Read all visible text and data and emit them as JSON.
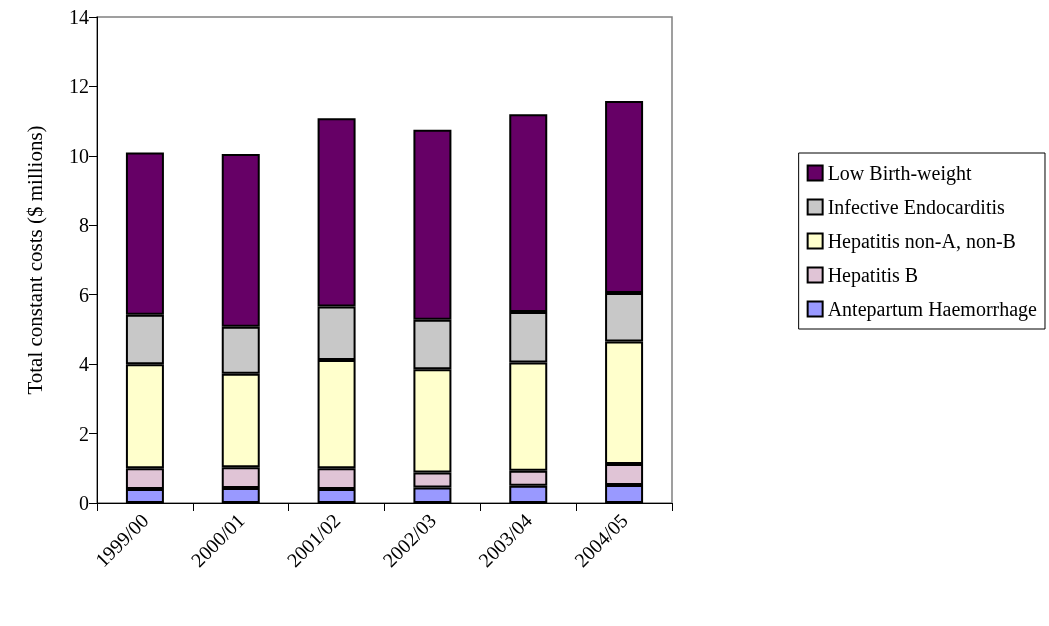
{
  "chart_data": {
    "type": "bar",
    "stacked": true,
    "ylabel": "Total constant costs ($ millions)",
    "categories": [
      "1999/00",
      "2000/01",
      "2001/02",
      "2002/03",
      "2003/04",
      "2004/05"
    ],
    "series": [
      {
        "name": "Antepartum Haemorrhage",
        "color": "#9999ff",
        "values": [
          0.4,
          0.43,
          0.4,
          0.45,
          0.5,
          0.52
        ]
      },
      {
        "name": "Hepatitis B",
        "color": "#e0c4d6",
        "values": [
          0.6,
          0.6,
          0.6,
          0.43,
          0.43,
          0.6
        ]
      },
      {
        "name": "Hepatitis non-A, non-B",
        "color": "#ffffcc",
        "values": [
          3.0,
          2.69,
          3.12,
          2.97,
          3.12,
          3.53
        ]
      },
      {
        "name": "Infective Endocarditis",
        "color": "#c8c8c8",
        "values": [
          1.42,
          1.36,
          1.54,
          1.43,
          1.45,
          1.4
        ]
      },
      {
        "name": "Low Birth-weight",
        "color": "#660066",
        "values": [
          4.68,
          4.97,
          5.42,
          5.47,
          5.7,
          5.53
        ]
      }
    ],
    "ylim": [
      0,
      14
    ],
    "yticks": [
      0,
      2,
      4,
      6,
      8,
      10,
      12,
      14
    ],
    "grid": false,
    "legend": "right"
  }
}
